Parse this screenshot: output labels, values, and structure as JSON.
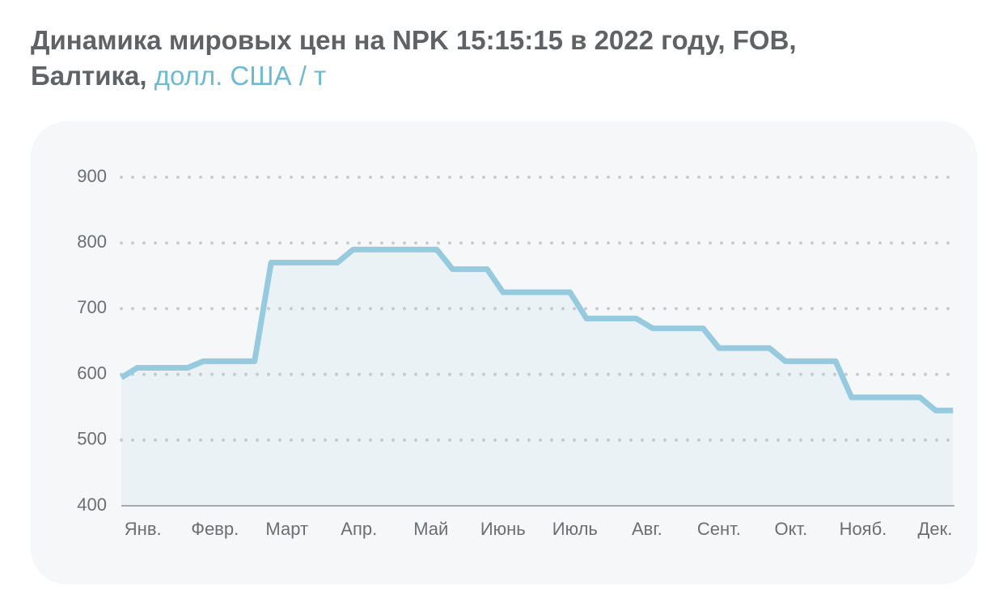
{
  "chart_data": {
    "type": "line",
    "title": "Динамика мировых цен на NPK 15:15:15 в 2022 году, FOB, Балтика,",
    "subtitle": "долл. США / т",
    "x": [
      -0.3,
      -0.08,
      0.62,
      0.84,
      1.55,
      1.78,
      2.7,
      2.92,
      4.08,
      4.3,
      4.78,
      5.0,
      5.93,
      6.16,
      6.85,
      7.08,
      7.78,
      8.0,
      8.7,
      8.92,
      9.62,
      9.84,
      10.79,
      11.01,
      11.25
    ],
    "series": [
      {
        "color": "#95cadf",
        "values": [
          595,
          610,
          610,
          620,
          620,
          770,
          770,
          790,
          790,
          760,
          760,
          725,
          725,
          685,
          685,
          670,
          670,
          640,
          640,
          620,
          620,
          565,
          565,
          545,
          545
        ]
      }
    ],
    "xlim": [
      -0.3,
      11.27
    ],
    "xticks": [
      {
        "value": 0,
        "label": "Янв."
      },
      {
        "value": 1,
        "label": "Февр."
      },
      {
        "value": 2,
        "label": "Март"
      },
      {
        "value": 3,
        "label": "Апр."
      },
      {
        "value": 4,
        "label": "Май"
      },
      {
        "value": 5,
        "label": "Июнь"
      },
      {
        "value": 6,
        "label": "Июль"
      },
      {
        "value": 7,
        "label": "Авг."
      },
      {
        "value": 8,
        "label": "Сент."
      },
      {
        "value": 9,
        "label": "Окт."
      },
      {
        "value": 10,
        "label": "Нояб."
      },
      {
        "value": 11,
        "label": "Дек."
      }
    ],
    "ylim": [
      400,
      900
    ],
    "yticks": [
      400,
      500,
      600,
      700,
      800,
      900
    ],
    "grid": true
  }
}
